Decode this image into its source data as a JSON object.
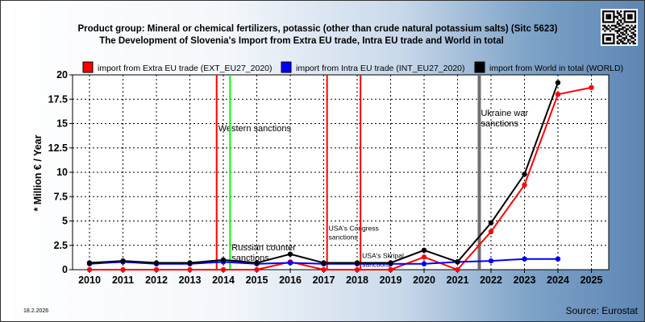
{
  "chart_data": {
    "type": "line",
    "title": "Product group: Mineral or chemical fertilizers, potassic (other than crude natural potassium salts) (Sitc 5623)",
    "subtitle": "The Development of Slovenia's Import from Extra EU trade, Intra EU trade and World in total",
    "ylabel": "* Million € / Year",
    "ylim": [
      0,
      20
    ],
    "yticks": [
      "0",
      "2.5",
      "5",
      "7.5",
      "10",
      "12.5",
      "15",
      "17.5",
      "20"
    ],
    "x": [
      "2010",
      "2011",
      "2012",
      "2013",
      "2014",
      "2015",
      "2016",
      "2017",
      "2018",
      "2019",
      "2020",
      "2021",
      "2022",
      "2023",
      "2024",
      "2025"
    ],
    "grid": true,
    "series": [
      {
        "name": "import from Extra EU trade (EXT_EU27_2020)",
        "color": "#ff0000",
        "values": [
          0.0,
          0.0,
          0.0,
          0.0,
          0.0,
          0.0,
          0.8,
          0.0,
          0.0,
          0.0,
          1.3,
          0.0,
          3.9,
          8.7,
          18.0,
          18.7
        ]
      },
      {
        "name": "import from Intra EU trade (INT_EU27_2020)",
        "color": "#0000ff",
        "values": [
          0.6,
          0.8,
          0.6,
          0.6,
          0.8,
          0.6,
          0.7,
          0.6,
          0.6,
          0.6,
          0.6,
          0.8,
          0.9,
          1.1,
          1.1,
          null
        ]
      },
      {
        "name": "import from World in total (WORLD)",
        "color": "#000000",
        "values": [
          0.7,
          0.9,
          0.7,
          0.7,
          1.0,
          0.7,
          1.6,
          0.7,
          0.7,
          0.7,
          2.0,
          0.8,
          4.8,
          9.8,
          19.2,
          null
        ]
      }
    ],
    "annotations": [
      {
        "text": "Western sanctions",
        "x": 2013.8,
        "color": "#ff0000",
        "label_pos": 14.2
      },
      {
        "text": "",
        "x": 2014.2,
        "color": "#00ff00"
      },
      {
        "text": "Russian counter sanctions",
        "x": 2014.2,
        "label_pos": 2.0
      },
      {
        "text": "USA's Congress sanctions",
        "x": 2017.1,
        "color": "#ff0000",
        "label_pos": 4.0
      },
      {
        "text": "USA's Skripal sanctions",
        "x": 2018.1,
        "color": "#ff0000",
        "label_pos": 1.2
      },
      {
        "text": "Ukraine war sanctions",
        "x": 2021.65,
        "color": "#707070",
        "label_pos": 15.8
      }
    ]
  },
  "date": "18.2.2026",
  "source": "Source: Eurostat",
  "qr_icon": "qr-code-icon"
}
